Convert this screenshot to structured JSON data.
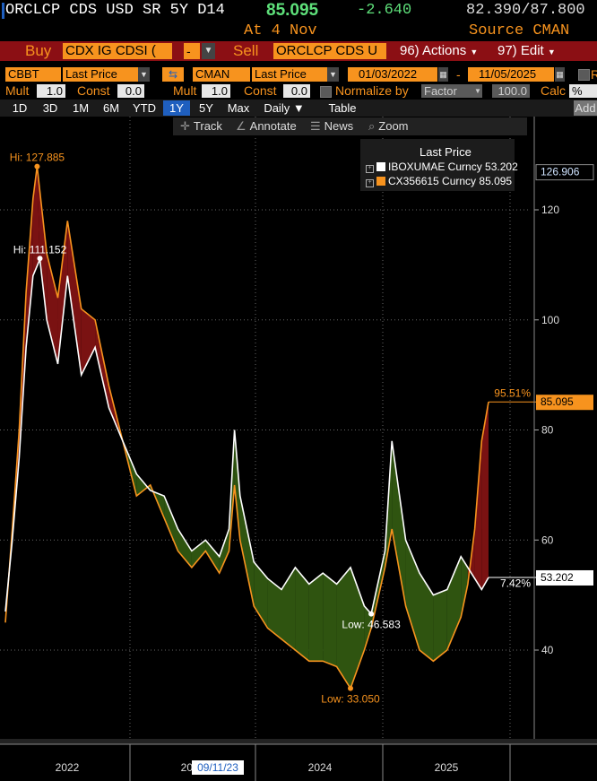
{
  "header": {
    "ticker": "ORCLCP CDS USD SR 5Y D14",
    "last_price": "85.095",
    "change": "-2.640",
    "range": "82.390/87.800",
    "date": "At 4 Nov",
    "source": "Source CMAN"
  },
  "trade_bar": {
    "buy_label": "Buy",
    "buy_field": "CDX IG CDSI (",
    "buy_dropdown": "-",
    "sell_label": "Sell",
    "sell_field": "ORCLCP CDS U",
    "actions_label": "96) Actions",
    "edit_label": "97) Edit"
  },
  "controls": {
    "source1": "CBBT",
    "field1": "Last Price",
    "source2": "CMAN",
    "field2": "Last Price",
    "start_date": "01/03/2022",
    "end_date": "11/05/2025",
    "date_sep": "-",
    "mult1_label": "Mult",
    "mult1": "1.0",
    "const1_label": "Const",
    "const1": "0.0",
    "mult2_label": "Mult",
    "mult2": "1.0",
    "const2_label": "Const",
    "const2": "0.0",
    "normalize_label": "Normalize by",
    "normalize_field": "Factor",
    "normalize_value": "100.0",
    "calc_label": "Calc",
    "calc_field": "%",
    "right_cut": "R"
  },
  "periods": [
    "1D",
    "3D",
    "1M",
    "6M",
    "YTD",
    "1Y",
    "5Y",
    "Max"
  ],
  "period_selected": "1Y",
  "daily_label": "Daily ▼",
  "table_label": "Table",
  "add_label": "Add",
  "toolbar": {
    "track": "Track",
    "annotate": "Annotate",
    "news": "News",
    "zoom": "Zoom"
  },
  "colors": {
    "orange": "#f7931e",
    "white": "#ffffff",
    "spread_up": "#7a1212",
    "spread_down": "#2f5410",
    "buy_bar": "#8b0f14",
    "selected_period": "#1f5fbf"
  },
  "chart_data": {
    "type": "line",
    "legend_title": "Last Price",
    "legend_position": "top-right",
    "grid": true,
    "ylim": [
      30,
      140
    ],
    "y_ticks": [
      40,
      60,
      80,
      100,
      120
    ],
    "x_tick_labels": [
      "2022",
      "2023",
      "2024",
      "2025"
    ],
    "crosshair_date": "09/11/23",
    "series": [
      {
        "name": "IBOXUMAE Curncy",
        "last": "53.202",
        "color": "#ffffff",
        "points": [
          [
            2022.0,
            47
          ],
          [
            2022.05,
            60
          ],
          [
            2022.1,
            75
          ],
          [
            2022.15,
            95
          ],
          [
            2022.2,
            108
          ],
          [
            2022.25,
            111
          ],
          [
            2022.3,
            100
          ],
          [
            2022.38,
            92
          ],
          [
            2022.45,
            108
          ],
          [
            2022.55,
            90
          ],
          [
            2022.65,
            95
          ],
          [
            2022.75,
            84
          ],
          [
            2022.85,
            78
          ],
          [
            2022.95,
            72
          ],
          [
            2023.05,
            69
          ],
          [
            2023.15,
            68
          ],
          [
            2023.25,
            62
          ],
          [
            2023.35,
            58
          ],
          [
            2023.45,
            60
          ],
          [
            2023.55,
            57
          ],
          [
            2023.62,
            62
          ],
          [
            2023.66,
            80
          ],
          [
            2023.7,
            68
          ],
          [
            2023.8,
            56
          ],
          [
            2023.9,
            53
          ],
          [
            2024.0,
            51
          ],
          [
            2024.1,
            55
          ],
          [
            2024.2,
            52
          ],
          [
            2024.3,
            54
          ],
          [
            2024.4,
            52
          ],
          [
            2024.5,
            55
          ],
          [
            2024.6,
            48
          ],
          [
            2024.65,
            46.6
          ],
          [
            2024.75,
            58
          ],
          [
            2024.8,
            78
          ],
          [
            2024.9,
            60
          ],
          [
            2025.0,
            54
          ],
          [
            2025.1,
            50
          ],
          [
            2025.2,
            51
          ],
          [
            2025.3,
            57
          ],
          [
            2025.35,
            55
          ],
          [
            2025.4,
            53
          ],
          [
            2025.45,
            51
          ],
          [
            2025.5,
            53.2
          ]
        ]
      },
      {
        "name": "CX356615 Curncy",
        "last": "85.095",
        "color": "#f7931e",
        "points": [
          [
            2022.0,
            45
          ],
          [
            2022.05,
            62
          ],
          [
            2022.1,
            80
          ],
          [
            2022.15,
            105
          ],
          [
            2022.2,
            122
          ],
          [
            2022.23,
            127.9
          ],
          [
            2022.3,
            112
          ],
          [
            2022.38,
            104
          ],
          [
            2022.45,
            118
          ],
          [
            2022.55,
            102
          ],
          [
            2022.65,
            100
          ],
          [
            2022.75,
            88
          ],
          [
            2022.85,
            78
          ],
          [
            2022.95,
            68
          ],
          [
            2023.05,
            70
          ],
          [
            2023.15,
            64
          ],
          [
            2023.25,
            58
          ],
          [
            2023.35,
            55
          ],
          [
            2023.45,
            58
          ],
          [
            2023.55,
            54
          ],
          [
            2023.62,
            58
          ],
          [
            2023.66,
            70
          ],
          [
            2023.7,
            60
          ],
          [
            2023.8,
            48
          ],
          [
            2023.9,
            44
          ],
          [
            2024.0,
            42
          ],
          [
            2024.1,
            40
          ],
          [
            2024.2,
            38
          ],
          [
            2024.3,
            38
          ],
          [
            2024.4,
            37
          ],
          [
            2024.5,
            33.05
          ],
          [
            2024.6,
            40
          ],
          [
            2024.65,
            44
          ],
          [
            2024.75,
            55
          ],
          [
            2024.8,
            62
          ],
          [
            2024.9,
            48
          ],
          [
            2025.0,
            40
          ],
          [
            2025.1,
            38
          ],
          [
            2025.2,
            40
          ],
          [
            2025.3,
            46
          ],
          [
            2025.35,
            52
          ],
          [
            2025.4,
            62
          ],
          [
            2025.45,
            78
          ],
          [
            2025.5,
            85.1
          ]
        ]
      }
    ],
    "annotations": [
      {
        "text": "Hi: 127.885",
        "series": "CX356615 Curncy",
        "x": 2022.23,
        "y": 127.885
      },
      {
        "text": "Hi: 111.152",
        "series": "IBOXUMAE Curncy",
        "x": 2022.25,
        "y": 111.152
      },
      {
        "text": "Low: 46.583",
        "series": "IBOXUMAE Curncy",
        "x": 2024.65,
        "y": 46.583
      },
      {
        "text": "Low: 33.050",
        "series": "CX356615 Curncy",
        "x": 2024.5,
        "y": 33.05
      }
    ],
    "spread_labels": [
      {
        "text": "95.51%",
        "series": "CX356615 Curncy",
        "y": 86.5
      },
      {
        "text": "7.42%",
        "series": "IBOXUMAE Curncy",
        "y": 52
      }
    ],
    "price_tags": [
      {
        "text": "126.906",
        "y": 126.906,
        "style": "outline"
      },
      {
        "text": "85.095",
        "y": 85.095,
        "style": "orange"
      },
      {
        "text": "53.202",
        "y": 53.202,
        "style": "white"
      }
    ]
  }
}
